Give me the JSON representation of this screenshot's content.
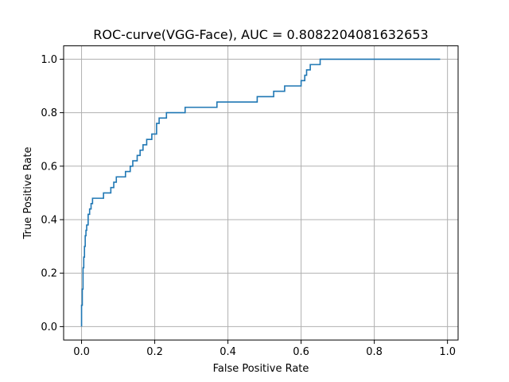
{
  "chart_data": {
    "type": "line",
    "title": "ROC-curve(VGG-Face), AUC = 0.8082204081632653",
    "xlabel": "False Positive Rate",
    "ylabel": "True Positive Rate",
    "xlim": [
      -0.049,
      1.029
    ],
    "ylim": [
      -0.05,
      1.05
    ],
    "grid": true,
    "line_color": "#1f77b4",
    "xticks": [
      0.0,
      0.2,
      0.4,
      0.6,
      0.8,
      1.0
    ],
    "xtick_labels": [
      "0.0",
      "0.2",
      "0.4",
      "0.6",
      "0.8",
      "1.0"
    ],
    "yticks": [
      0.0,
      0.2,
      0.4,
      0.6,
      0.8,
      1.0
    ],
    "ytick_labels": [
      "0.0",
      "0.2",
      "0.4",
      "0.6",
      "0.8",
      "1.0"
    ],
    "series": [
      {
        "x": [
          0.0,
          0.0,
          0.002,
          0.002,
          0.004,
          0.004,
          0.006,
          0.006,
          0.008,
          0.008,
          0.01,
          0.01,
          0.012,
          0.012,
          0.014,
          0.014,
          0.018,
          0.018,
          0.022,
          0.022,
          0.026,
          0.026,
          0.03,
          0.03,
          0.06,
          0.06,
          0.08,
          0.08,
          0.088,
          0.088,
          0.095,
          0.095,
          0.12,
          0.12,
          0.133,
          0.133,
          0.14,
          0.14,
          0.152,
          0.152,
          0.16,
          0.16,
          0.168,
          0.168,
          0.178,
          0.178,
          0.192,
          0.192,
          0.205,
          0.205,
          0.212,
          0.212,
          0.232,
          0.232,
          0.283,
          0.283,
          0.37,
          0.37,
          0.48,
          0.48,
          0.525,
          0.525,
          0.555,
          0.555,
          0.6,
          0.6,
          0.61,
          0.61,
          0.615,
          0.615,
          0.625,
          0.625,
          0.652,
          0.652,
          0.9,
          0.9,
          0.98
        ],
        "y": [
          0.0,
          0.08,
          0.08,
          0.14,
          0.14,
          0.22,
          0.22,
          0.26,
          0.26,
          0.3,
          0.3,
          0.34,
          0.34,
          0.36,
          0.36,
          0.38,
          0.38,
          0.42,
          0.42,
          0.44,
          0.44,
          0.46,
          0.46,
          0.48,
          0.48,
          0.5,
          0.5,
          0.52,
          0.52,
          0.54,
          0.54,
          0.56,
          0.56,
          0.58,
          0.58,
          0.6,
          0.6,
          0.62,
          0.62,
          0.64,
          0.64,
          0.66,
          0.66,
          0.68,
          0.68,
          0.7,
          0.7,
          0.72,
          0.72,
          0.76,
          0.76,
          0.78,
          0.78,
          0.8,
          0.8,
          0.82,
          0.82,
          0.84,
          0.84,
          0.86,
          0.86,
          0.88,
          0.88,
          0.9,
          0.9,
          0.92,
          0.92,
          0.94,
          0.94,
          0.96,
          0.96,
          0.98,
          0.98,
          1.0,
          1.0,
          1.0,
          1.0
        ]
      }
    ]
  }
}
